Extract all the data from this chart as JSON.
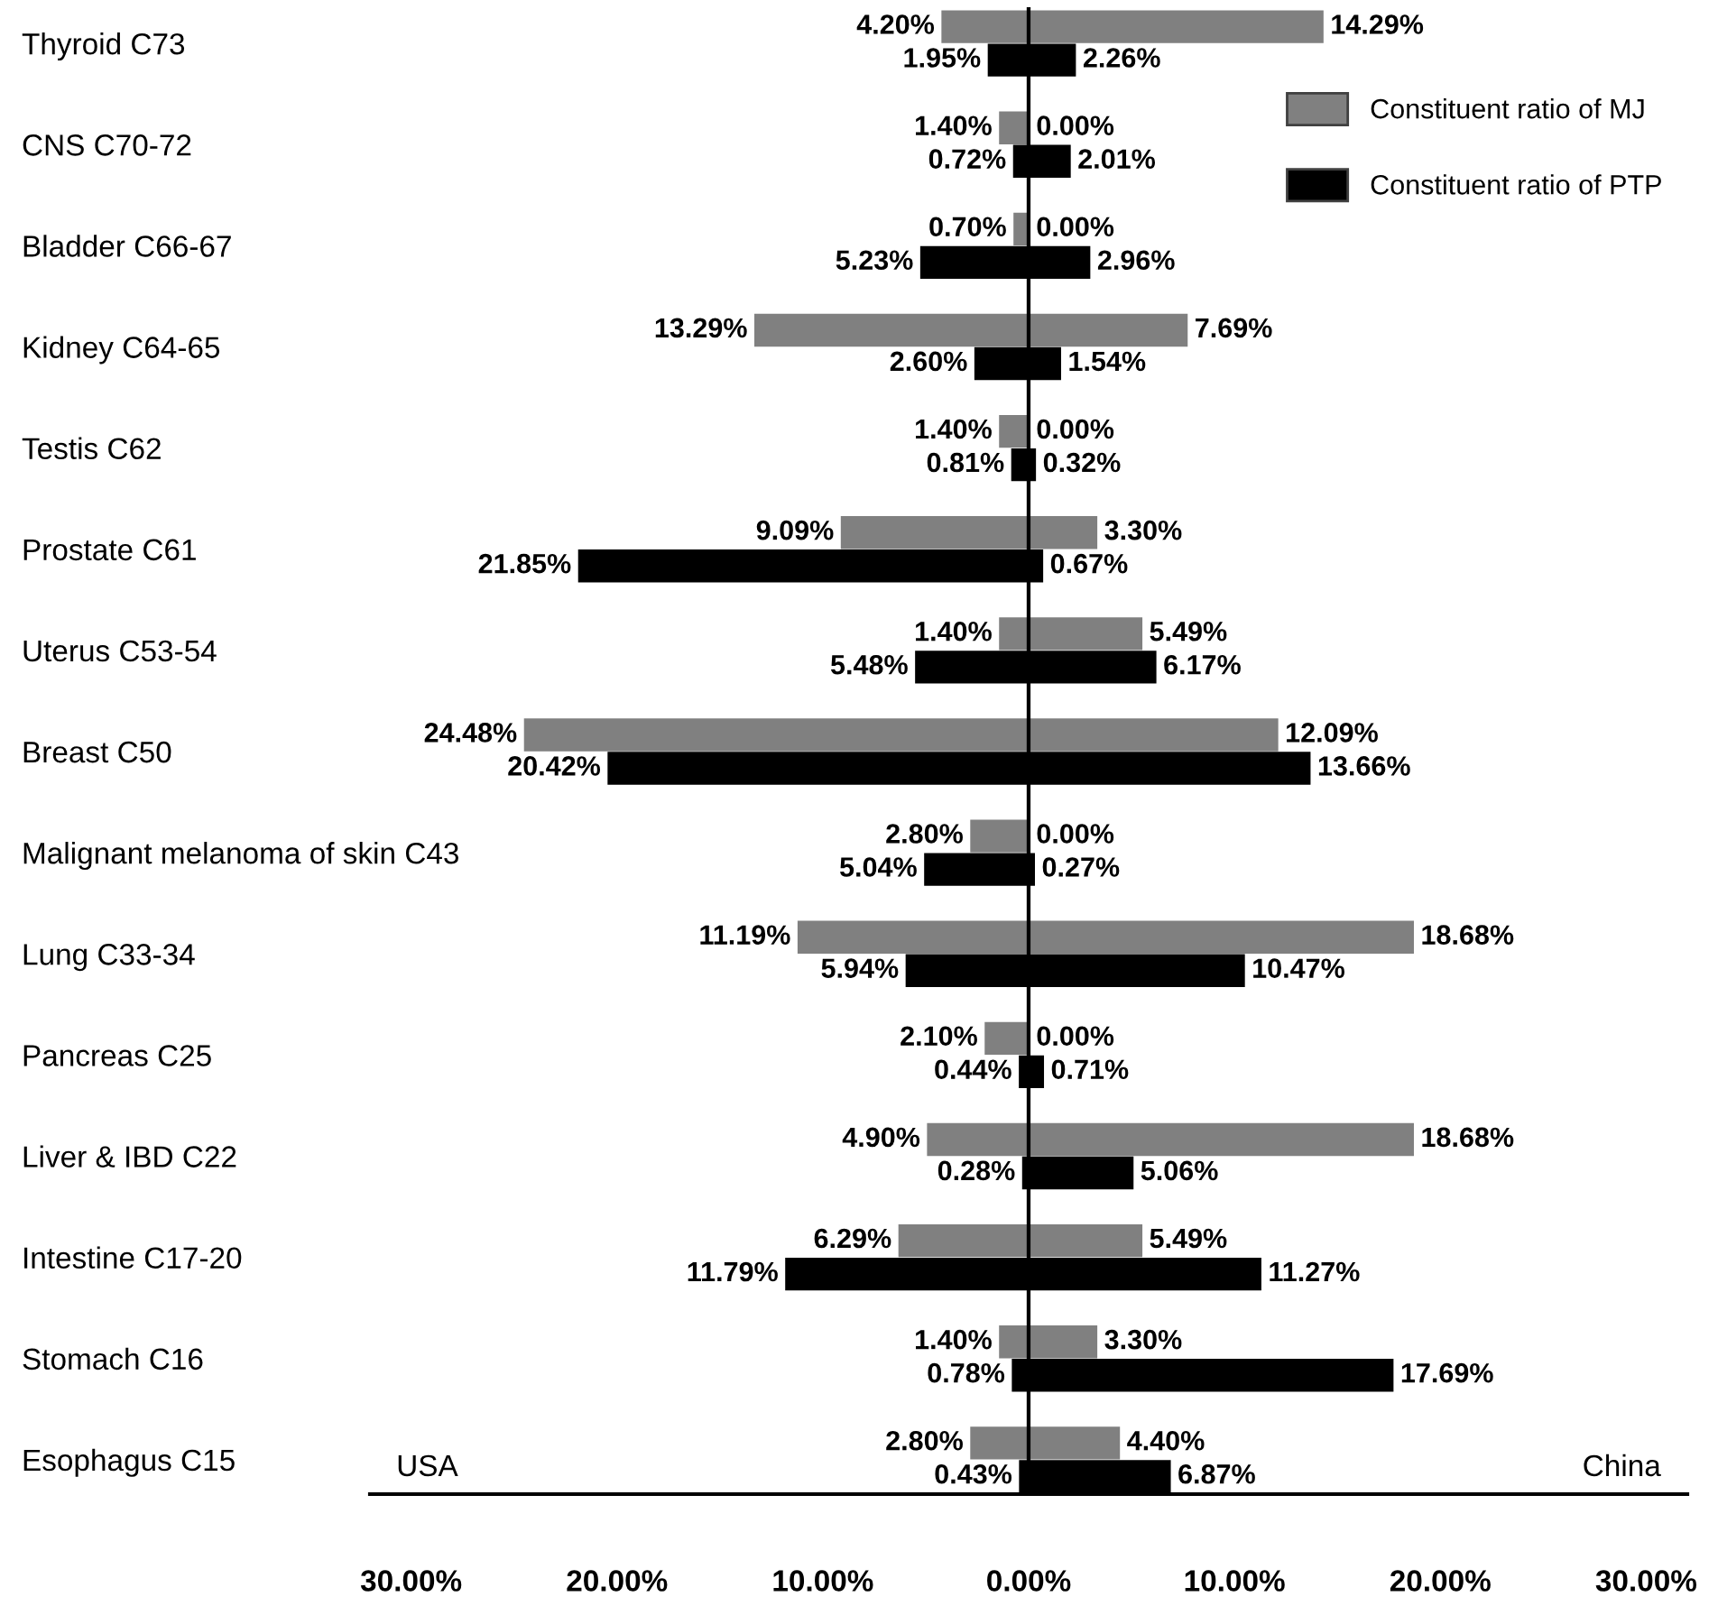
{
  "chart_data": [
    {
      "type": "bar",
      "orientation": "horizontal",
      "categories": [
        "Thyroid C73",
        "CNS C70-72",
        "Bladder C66-67",
        "Kidney C64-65",
        "Testis C62",
        "Prostate C61",
        "Uterus C53-54",
        "Breast C50",
        "Malignant melanoma of skin C43",
        "Lung C33-34",
        "Pancreas C25",
        "Liver & IBD C22",
        "Intestine C17-20",
        "Stomach C16",
        "Esophagus C15"
      ],
      "series": [
        {
          "color": "#808080",
          "values": [
            4.2,
            1.4,
            0.7,
            13.29,
            1.4,
            9.09,
            1.4,
            24.48,
            2.8,
            11.19,
            2.1,
            4.9,
            6.29,
            1.4,
            2.8
          ],
          "value_labels": [
            "4.20%",
            "1.40%",
            "0.70%",
            "13.29%",
            "1.40%",
            "9.09%",
            "1.40%",
            "24.48%",
            "2.80%",
            "11.19%",
            "2.10%",
            "4.90%",
            "6.29%",
            "1.40%",
            "2.80%"
          ]
        },
        {
          "color": "#000000",
          "values": [
            1.95,
            0.72,
            5.23,
            2.6,
            0.81,
            21.85,
            5.48,
            20.42,
            5.04,
            5.94,
            0.44,
            0.28,
            11.79,
            0.78,
            0.43
          ],
          "value_labels": [
            "1.95%",
            "0.72%",
            "5.23%",
            "2.60%",
            "0.81%",
            "21.85%",
            "5.48%",
            "20.42%",
            "5.04%",
            "5.94%",
            "0.44%",
            "0.28%",
            "11.79%",
            "0.78%",
            "0.43%"
          ]
        }
      ],
      "xlim": [
        32,
        0
      ],
      "xticks": [
        {
          "value": 30,
          "label": "30.00%"
        },
        {
          "value": 20,
          "label": "20.00%"
        },
        {
          "value": 10,
          "label": "10.00%"
        },
        {
          "value": 0,
          "label": "0.00%"
        }
      ],
      "annotations": [
        "USA"
      ]
    },
    {
      "type": "bar",
      "orientation": "horizontal",
      "categories": [
        "Thyroid C73",
        "CNS C70-72",
        "Bladder C66-67",
        "Kidney C64-65",
        "Testis C62",
        "Prostate C61",
        "Uterus C53-54",
        "Breast C50",
        "Malignant melanoma of skin C43",
        "Lung C33-34",
        "Pancreas C25",
        "Liver & IBD C22",
        "Intestine C17-20",
        "Stomach C16",
        "Esophagus C15"
      ],
      "series": [
        {
          "name": "Constituent ratio of MJ",
          "color": "#808080",
          "values": [
            14.29,
            0.0,
            0.0,
            7.69,
            0.0,
            3.3,
            5.49,
            12.09,
            0.0,
            18.68,
            0.0,
            18.68,
            5.49,
            3.3,
            4.4
          ],
          "value_labels": [
            "14.29%",
            "0.00%",
            "0.00%",
            "7.69%",
            "0.00%",
            "3.30%",
            "5.49%",
            "12.09%",
            "0.00%",
            "18.68%",
            "0.00%",
            "18.68%",
            "5.49%",
            "3.30%",
            "4.40%"
          ]
        },
        {
          "name": "Constituent ratio of PTP",
          "color": "#000000",
          "values": [
            2.26,
            2.01,
            2.96,
            1.54,
            0.32,
            0.67,
            6.17,
            13.66,
            0.27,
            10.47,
            0.71,
            5.06,
            11.27,
            17.69,
            6.87
          ],
          "value_labels": [
            "2.26%",
            "2.01%",
            "2.96%",
            "1.54%",
            "0.32%",
            "0.67%",
            "6.17%",
            "13.66%",
            "0.27%",
            "10.47%",
            "0.71%",
            "5.06%",
            "11.27%",
            "17.69%",
            "6.87%"
          ]
        }
      ],
      "xlim": [
        0,
        32
      ],
      "xticks": [
        {
          "value": 10,
          "label": "10.00%"
        },
        {
          "value": 20,
          "label": "20.00%"
        },
        {
          "value": 30,
          "label": "30.00%"
        }
      ],
      "annotations": [
        "China"
      ],
      "tick_labels": "x",
      "legend": "top right"
    }
  ]
}
